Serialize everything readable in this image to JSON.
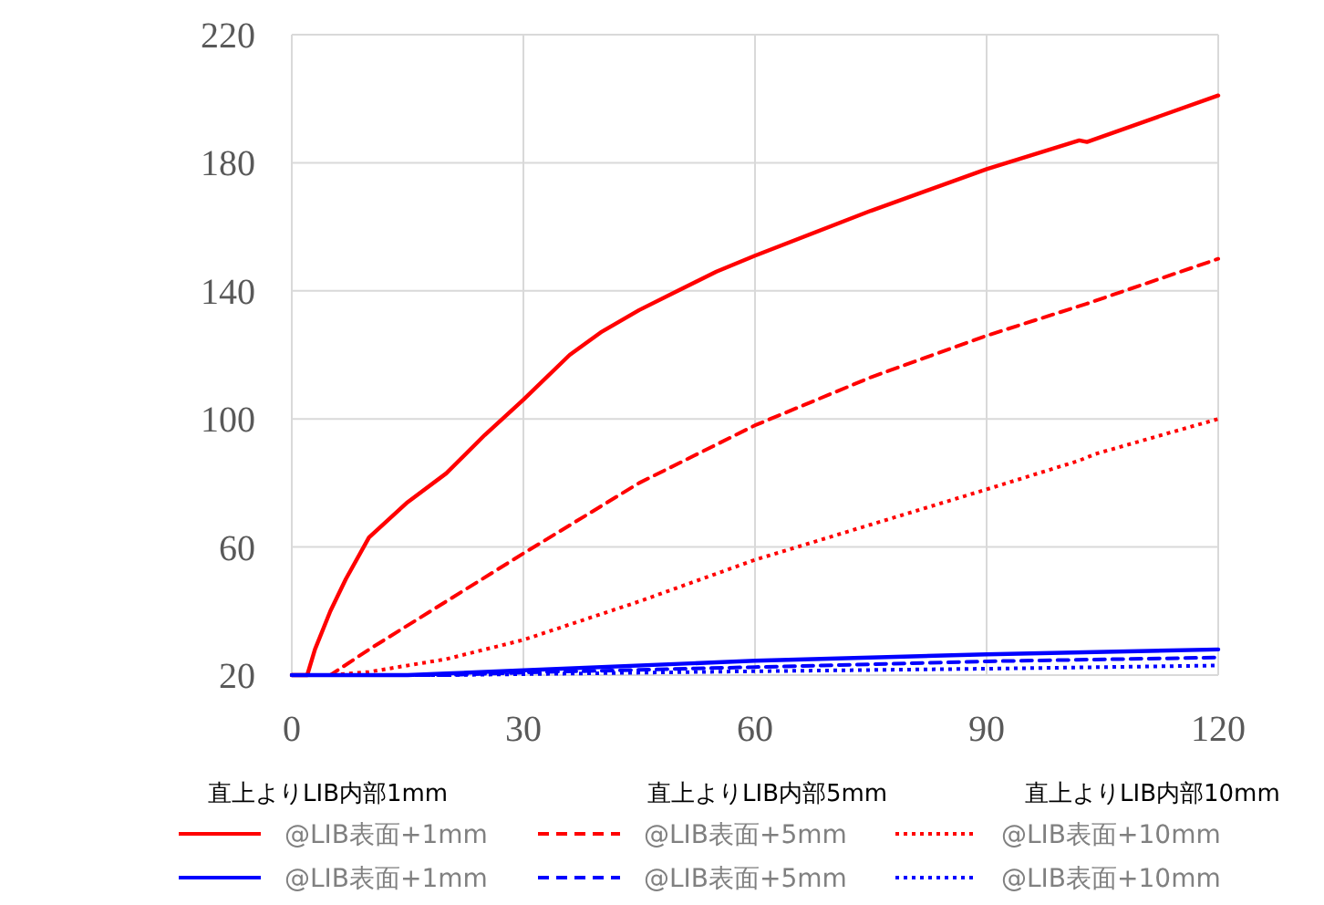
{
  "chart_data": {
    "type": "line",
    "xlim": [
      0,
      120
    ],
    "ylim": [
      20,
      220
    ],
    "xticks": [
      0,
      30,
      60,
      90,
      120
    ],
    "yticks": [
      20,
      60,
      100,
      140,
      180,
      220
    ],
    "grid": true,
    "legend": "bottom",
    "annotations": [
      "直上よりLIB内部1mm",
      "直上よりLIB内部5mm",
      "直上よりLIB内部10mm"
    ],
    "series": [
      {
        "name": "@LIB表面+1mm",
        "color": "#ff0000",
        "line_style": "solid",
        "x": [
          0,
          2,
          3,
          5,
          7,
          10,
          15,
          20,
          25,
          30,
          36,
          40,
          45,
          50,
          55,
          60,
          75,
          90,
          102,
          103,
          120
        ],
        "values": [
          20,
          20,
          28,
          40,
          50,
          63,
          74,
          83,
          95,
          106,
          120,
          127,
          134,
          140,
          146,
          151,
          165,
          178,
          187,
          186.5,
          201
        ]
      },
      {
        "name": "@LIB表面+5mm",
        "color": "#ff0000",
        "line_style": "dashed",
        "x": [
          0,
          5,
          10,
          20,
          30,
          45,
          60,
          75,
          90,
          103,
          120
        ],
        "values": [
          20,
          20,
          28,
          43,
          58,
          80,
          98,
          113,
          126,
          136,
          150
        ]
      },
      {
        "name": "@LIB表面+10mm",
        "color": "#ff0000",
        "line_style": "dotted",
        "x": [
          0,
          5,
          10,
          20,
          30,
          45,
          60,
          75,
          90,
          102,
          104,
          120
        ],
        "values": [
          20,
          20,
          21,
          25,
          31,
          43,
          56,
          67,
          78,
          87,
          89,
          100
        ]
      },
      {
        "name": "@LIB表面+1mm",
        "color": "#0000ff",
        "line_style": "solid",
        "x": [
          0,
          15,
          20,
          30,
          60,
          90,
          120
        ],
        "values": [
          20,
          20,
          20.5,
          21.5,
          24.5,
          26.5,
          28
        ]
      },
      {
        "name": "@LIB表面+5mm",
        "color": "#0000ff",
        "line_style": "dashed",
        "x": [
          0,
          20,
          30,
          60,
          90,
          120
        ],
        "values": [
          20,
          20,
          20.8,
          22.5,
          24.3,
          25.5
        ]
      },
      {
        "name": "@LIB表面+10mm",
        "color": "#0000ff",
        "line_style": "dotted",
        "x": [
          0,
          20,
          30,
          60,
          90,
          120
        ],
        "values": [
          20,
          20,
          20.3,
          21.2,
          22,
          23
        ]
      }
    ]
  }
}
